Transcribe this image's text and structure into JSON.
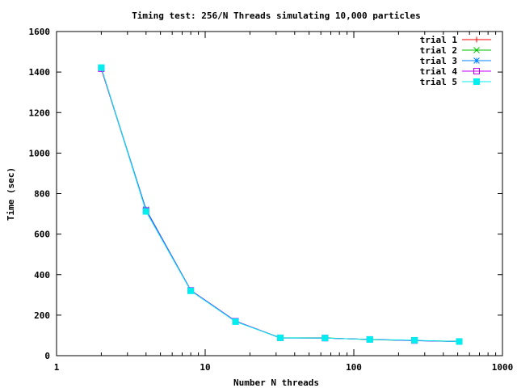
{
  "chart_data": {
    "type": "line",
    "title": "Timing test: 256/N Threads simulating 10,000 particles",
    "xlabel": "Number N threads",
    "ylabel": "Time (sec)",
    "xscale": "log",
    "xlim": [
      1,
      1000
    ],
    "ylim": [
      0,
      1600
    ],
    "xticks": [
      1,
      10,
      100,
      1000
    ],
    "xtick_labels": [
      "1",
      "10",
      "100",
      "1000"
    ],
    "yticks": [
      0,
      200,
      400,
      600,
      800,
      1000,
      1200,
      1400,
      1600
    ],
    "ytick_labels": [
      "0",
      "200",
      "400",
      "600",
      "800",
      "1000",
      "1200",
      "1400",
      "1600"
    ],
    "grid": false,
    "legend_position": "top-right",
    "x": [
      2,
      4,
      8,
      16,
      32,
      64,
      128,
      256,
      512
    ],
    "series": [
      {
        "name": "trial 1",
        "color": "#ff0000",
        "marker": "plus",
        "values": [
          1415,
          720,
          322,
          170,
          88,
          87,
          80,
          75,
          70
        ]
      },
      {
        "name": "trial 2",
        "color": "#00c000",
        "marker": "cross",
        "values": [
          1418,
          718,
          321,
          169,
          88,
          88,
          79,
          75,
          71
        ]
      },
      {
        "name": "trial 3",
        "color": "#0080ff",
        "marker": "star",
        "values": [
          1420,
          722,
          323,
          171,
          87,
          87,
          80,
          74,
          70
        ]
      },
      {
        "name": "trial 4",
        "color": "#c000ff",
        "marker": "box",
        "values": [
          1417,
          716,
          322,
          170,
          88,
          87,
          80,
          75,
          70
        ]
      },
      {
        "name": "trial 5",
        "color": "#00eeee",
        "marker": "filled-box",
        "values": [
          1422,
          712,
          320,
          168,
          88,
          87,
          80,
          76,
          70
        ]
      }
    ]
  }
}
